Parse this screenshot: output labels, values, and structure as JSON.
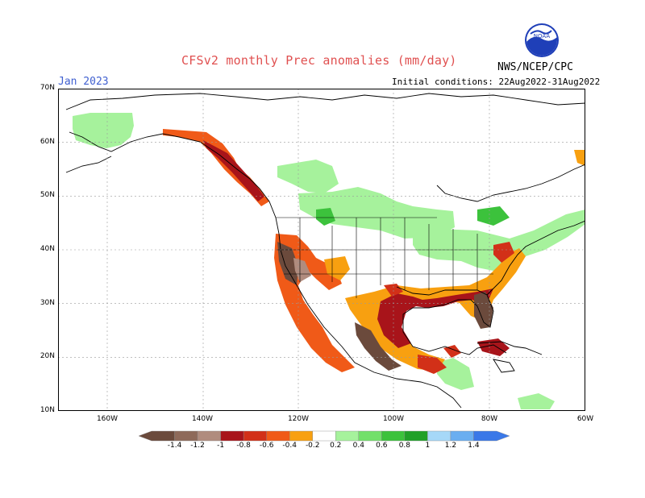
{
  "header": {
    "title": "CFSv2 monthly Prec anomalies (mm/day)",
    "month": "Jan 2023",
    "initial_conditions": "Initial conditions: 22Aug2022-31Aug2022",
    "agency": "NWS/NCEP/CPC",
    "logo_text": "NOAA"
  },
  "axes": {
    "lat_labels": [
      "70N",
      "60N",
      "50N",
      "40N",
      "30N",
      "20N",
      "10N"
    ],
    "lon_labels": [
      "160W",
      "140W",
      "120W",
      "100W",
      "80W",
      "60W"
    ]
  },
  "colorbar": {
    "labels": [
      "-1.4",
      "-1.2",
      "-1",
      "-0.8",
      "-0.6",
      "-0.4",
      "-0.2",
      "0.2",
      "0.4",
      "0.6",
      "0.8",
      "1",
      "1.2",
      "1.4"
    ],
    "colors": [
      "#6b4a3c",
      "#8e6a5a",
      "#b08c7e",
      "#a8141a",
      "#d23018",
      "#f05a18",
      "#f8a010",
      "#ffffff",
      "#a6f29c",
      "#72e06a",
      "#3cc23c",
      "#20a028",
      "#a6d8f8",
      "#6aaef0",
      "#3a78e8"
    ]
  }
}
